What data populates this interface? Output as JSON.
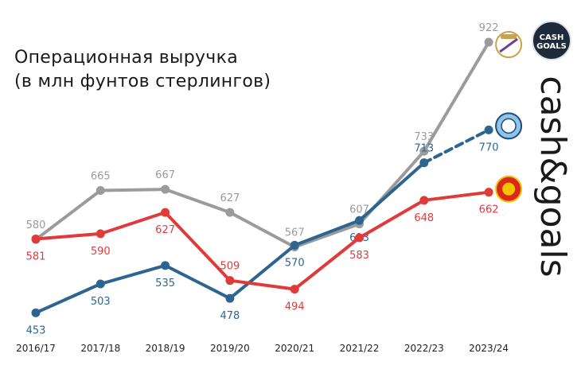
{
  "title": [
    "Операционная выручка",
    "(в млн фунтов стерлингов)"
  ],
  "brand": {
    "logo_text": "CASH GOALS",
    "side_text": "cash&goals"
  },
  "colors": {
    "real_madrid": "#9b9b9b",
    "man_city": "#2e6590",
    "man_united": "#e03a3a",
    "axis_label": "#222222"
  },
  "chart_data": {
    "type": "line",
    "categories": [
      "2016/17",
      "2017/18",
      "2018/19",
      "2019/20",
      "2020/21",
      "2021/22",
      "2022/23",
      "2023/24"
    ],
    "ylim": [
      430,
      940
    ],
    "series": [
      {
        "key": "real_madrid",
        "icon": "real-madrid-crest-icon",
        "values": [
          580,
          665,
          667,
          627,
          567,
          607,
          733,
          922
        ],
        "labels": [
          "580",
          "665",
          "667",
          "627",
          "567",
          "607",
          "733",
          "922"
        ],
        "label_pos": [
          "above",
          "above",
          "above",
          "above",
          "above",
          "above",
          "above",
          "above"
        ]
      },
      {
        "key": "man_city",
        "icon": "manchester-city-crest-icon",
        "values": [
          453,
          503,
          535,
          478,
          570,
          613,
          713,
          770
        ],
        "labels": [
          "453",
          "503",
          "535",
          "478",
          "570",
          "613",
          "713",
          "770"
        ],
        "label_pos": [
          "below",
          "below",
          "below",
          "below",
          "below",
          "below",
          "above",
          "below"
        ],
        "projected_last": true
      },
      {
        "key": "man_united",
        "icon": "manchester-united-crest-icon",
        "values": [
          581,
          590,
          627,
          509,
          494,
          583,
          648,
          662
        ],
        "labels": [
          "581",
          "590",
          "627",
          "509",
          "494",
          "583",
          "648",
          "662"
        ],
        "label_pos": [
          "below",
          "below",
          "below",
          "above",
          "below",
          "below",
          "below",
          "below"
        ]
      }
    ]
  }
}
